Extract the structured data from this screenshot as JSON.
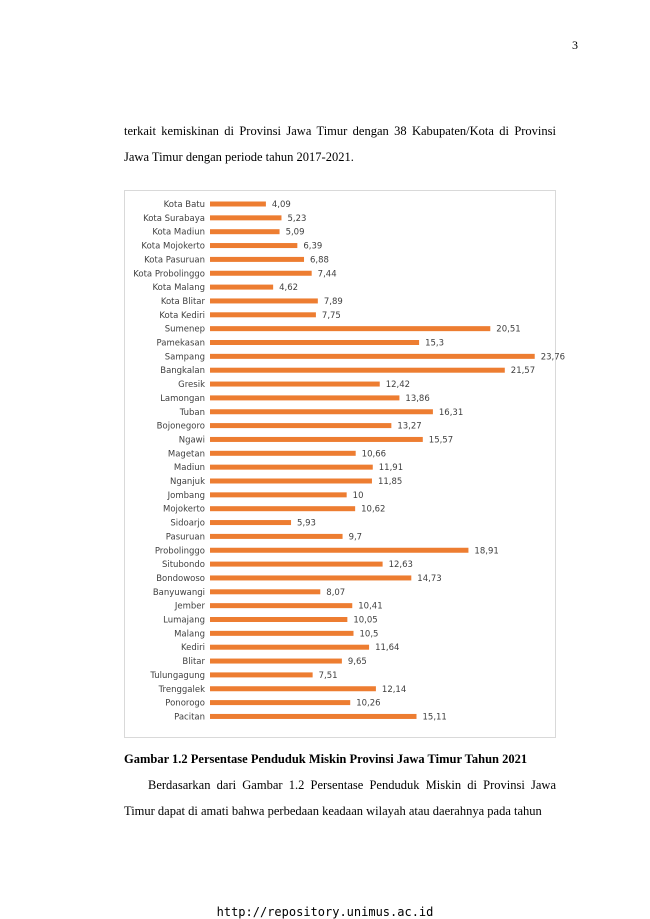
{
  "page": {
    "number": "3",
    "paragraph_top": "terkait kemiskinan di Provinsi Jawa Timur dengan 38 Kabupaten/Kota di Provinsi Jawa Timur dengan periode tahun 2017-2021.",
    "caption": "Gambar 1.2 Persentase Penduduk Miskin Provinsi Jawa Timur Tahun 2021",
    "paragraph_bottom": "Berdasarkan dari Gambar 1.2 Persentase Penduduk Miskin di Provinsi Jawa Timur dapat di amati bahwa perbedaan keadaan wilayah atau daerahnya pada tahun",
    "footer_url": "http://repository.unimus.ac.id"
  },
  "chart_data": {
    "type": "bar",
    "orientation": "horizontal",
    "bar_color": "#ED7D31",
    "grid": false,
    "xlim": [
      0,
      24
    ],
    "title": "",
    "xlabel": "",
    "ylabel": "",
    "categories": [
      "Kota Batu",
      "Kota Surabaya",
      "Kota Madiun",
      "Kota Mojokerto",
      "Kota Pasuruan",
      "Kota Probolinggo",
      "Kota Malang",
      "Kota Blitar",
      "Kota Kediri",
      "Sumenep",
      "Pamekasan",
      "Sampang",
      "Bangkalan",
      "Gresik",
      "Lamongan",
      "Tuban",
      "Bojonegoro",
      "Ngawi",
      "Magetan",
      "Madiun",
      "Nganjuk",
      "Jombang",
      "Mojokerto",
      "Sidoarjo",
      "Pasuruan",
      "Probolinggo",
      "Situbondo",
      "Bondowoso",
      "Banyuwangi",
      "Jember",
      "Lumajang",
      "Malang",
      "Kediri",
      "Blitar",
      "Tulungagung",
      "Trenggalek",
      "Ponorogo",
      "Pacitan"
    ],
    "values": [
      4.09,
      5.23,
      5.09,
      6.39,
      6.88,
      7.44,
      4.62,
      7.89,
      7.75,
      20.51,
      15.3,
      23.76,
      21.57,
      12.42,
      13.86,
      16.31,
      13.27,
      15.57,
      10.66,
      11.91,
      11.85,
      10,
      10.62,
      5.93,
      9.7,
      18.91,
      12.63,
      14.73,
      8.07,
      10.41,
      10.05,
      10.5,
      11.64,
      9.65,
      7.51,
      12.14,
      10.26,
      15.11
    ],
    "value_labels": [
      "4,09",
      "5,23",
      "5,09",
      "6,39",
      "6,88",
      "7,44",
      "4,62",
      "7,89",
      "7,75",
      "20,51",
      "15,3",
      "23,76",
      "21,57",
      "12,42",
      "13,86",
      "16,31",
      "13,27",
      "15,57",
      "10,66",
      "11,91",
      "11,85",
      "10",
      "10,62",
      "5,93",
      "9,7",
      "18,91",
      "12,63",
      "14,73",
      "8,07",
      "10,41",
      "10,05",
      "10,5",
      "11,64",
      "9,65",
      "7,51",
      "12,14",
      "10,26",
      "15,11"
    ]
  }
}
